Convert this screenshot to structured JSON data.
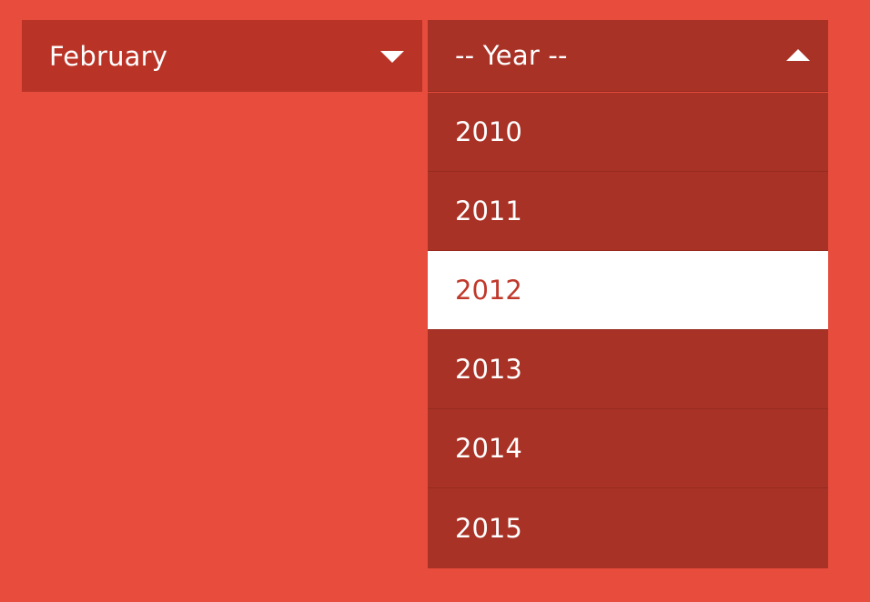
{
  "month_select": {
    "selected": "February",
    "caret": "caret-down-icon"
  },
  "year_select": {
    "placeholder": "-- Year --",
    "caret": "caret-up-icon",
    "expanded": true,
    "options": [
      {
        "label": "2010",
        "highlighted": false
      },
      {
        "label": "2011",
        "highlighted": false
      },
      {
        "label": "2012",
        "highlighted": true
      },
      {
        "label": "2013",
        "highlighted": false
      },
      {
        "label": "2014",
        "highlighted": false
      },
      {
        "label": "2015",
        "highlighted": false
      }
    ]
  },
  "colors": {
    "background": "#e74c3c",
    "select_bg": "#b93427",
    "dropdown_bg": "#a93226",
    "highlight_bg": "#ffffff",
    "highlight_text": "#c0392b",
    "text": "#ffffff"
  }
}
